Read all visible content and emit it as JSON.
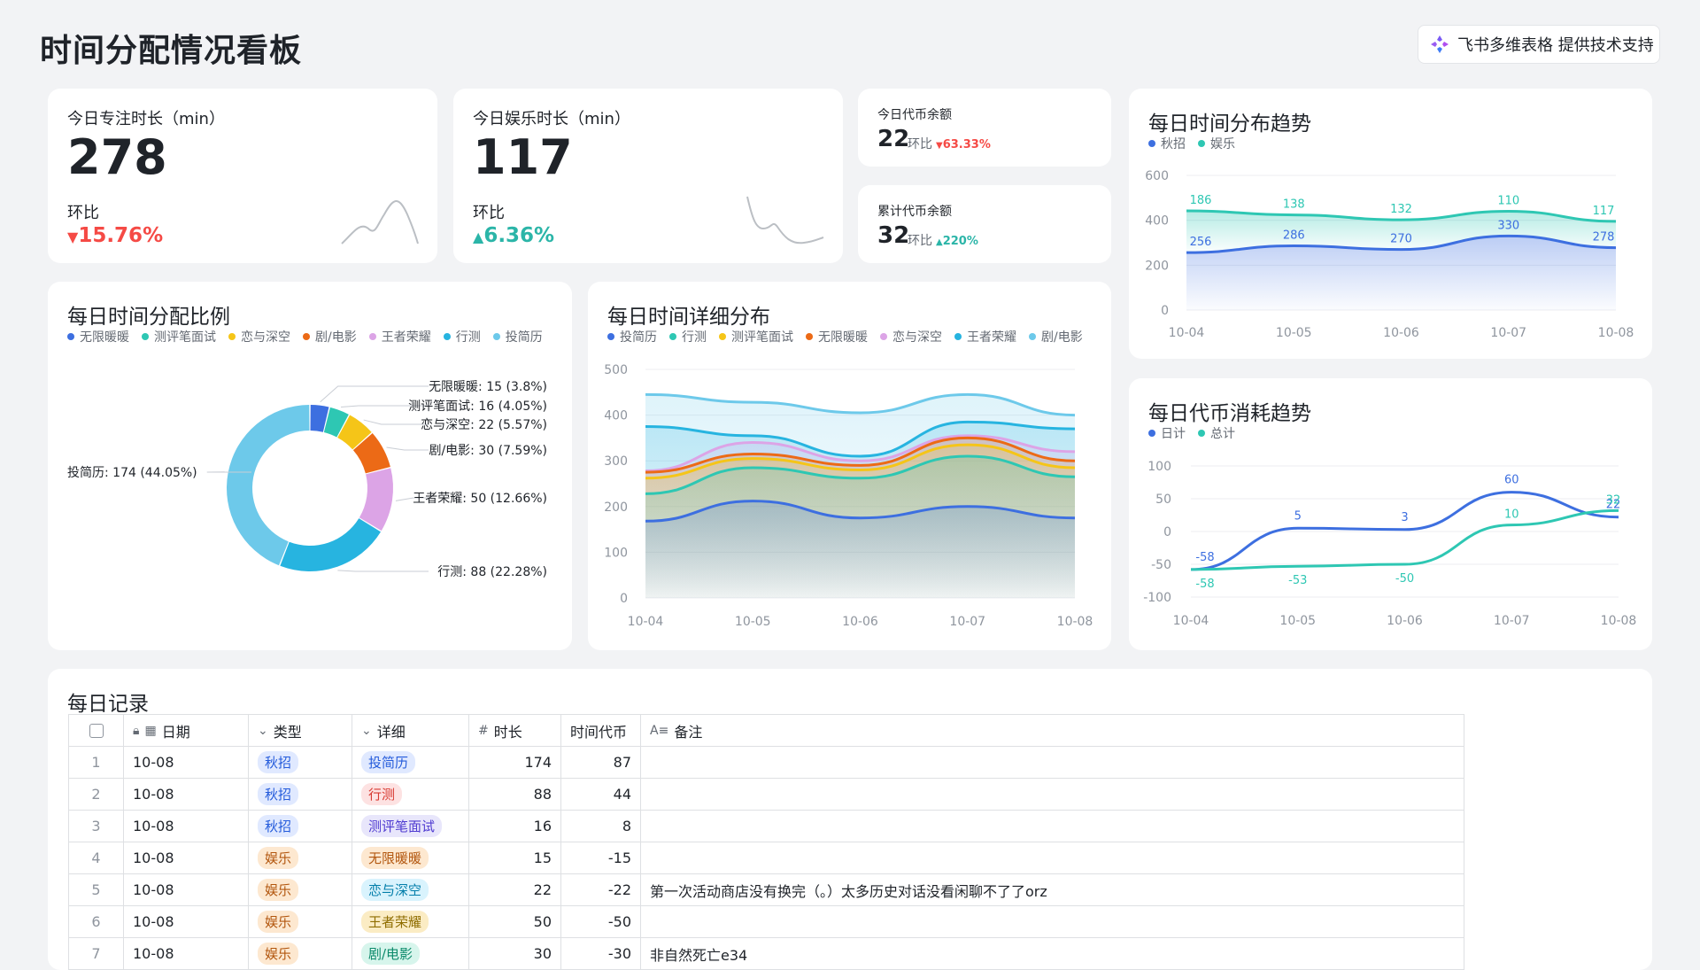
{
  "header": {
    "title": "时间分配情况看板",
    "brand": "飞书多维表格 提供技术支持"
  },
  "kpis": {
    "focus": {
      "label": "今日专注时长（min）",
      "value": "278",
      "cmp_label": "环比",
      "delta": "15.76%",
      "direction": "down"
    },
    "fun": {
      "label": "今日娱乐时长（min）",
      "value": "117",
      "cmp_label": "环比",
      "delta": "6.36%",
      "direction": "up"
    },
    "coin_today": {
      "label": "今日代币余额",
      "value": "22",
      "cmp_label": "环比",
      "delta": "63.33%",
      "direction": "down"
    },
    "coin_total": {
      "label": "累计代币余额",
      "value": "32",
      "cmp_label": "环比",
      "delta": "220%",
      "direction": "up"
    }
  },
  "colors": {
    "blue": "#3d6fe0",
    "teal": "#2ec7b3",
    "yellow": "#f5c518",
    "orange": "#ec6a16",
    "pink": "#dca4e6",
    "cyan": "#27b4e0",
    "lightblue": "#6dc9ea",
    "down": "#f54a45",
    "up": "#2bb5a8"
  },
  "chart_data": [
    {
      "id": "trend",
      "type": "area",
      "title": "每日时间分布趋势",
      "legend": [
        "秋招",
        "娱乐"
      ],
      "categories": [
        "10-04",
        "10-05",
        "10-06",
        "10-07",
        "10-08"
      ],
      "series": [
        {
          "name": "秋招",
          "values": [
            256,
            286,
            270,
            330,
            278
          ],
          "color": "#3d6fe0"
        },
        {
          "name": "娱乐",
          "values": [
            186,
            138,
            132,
            110,
            117
          ],
          "color": "#2ec7b3"
        }
      ],
      "stacked": true,
      "ylim": [
        0,
        600
      ],
      "yticks": [
        0,
        200,
        400,
        600
      ]
    },
    {
      "id": "ratio",
      "type": "pie",
      "title": "每日时间分配比例",
      "legend": [
        "无限暖暖",
        "测评笔面试",
        "恋与深空",
        "剧/电影",
        "王者荣耀",
        "行测",
        "投简历"
      ],
      "slices": [
        {
          "name": "无限暖暖",
          "value": 15,
          "pct": "3.8%",
          "color": "#3d6fe0"
        },
        {
          "name": "测评笔面试",
          "value": 16,
          "pct": "4.05%",
          "color": "#2ec7b3"
        },
        {
          "name": "恋与深空",
          "value": 22,
          "pct": "5.57%",
          "color": "#f5c518"
        },
        {
          "name": "剧/电影",
          "value": 30,
          "pct": "7.59%",
          "color": "#ec6a16"
        },
        {
          "name": "王者荣耀",
          "value": 50,
          "pct": "12.66%",
          "color": "#dca4e6"
        },
        {
          "name": "行测",
          "value": 88,
          "pct": "22.28%",
          "color": "#27b4e0"
        },
        {
          "name": "投简历",
          "value": 174,
          "pct": "44.05%",
          "color": "#6dc9ea"
        }
      ]
    },
    {
      "id": "detail",
      "type": "area",
      "title": "每日时间详细分布",
      "legend": [
        "投简历",
        "行测",
        "测评笔面试",
        "无限暖暖",
        "恋与深空",
        "王者荣耀",
        "剧/电影"
      ],
      "legend_colors": [
        "#3d6fe0",
        "#2ec7b3",
        "#f5c518",
        "#ec6a16",
        "#dca4e6",
        "#27b4e0",
        "#6dc9ea"
      ],
      "categories": [
        "10-04",
        "10-05",
        "10-06",
        "10-07",
        "10-08"
      ],
      "lines": [
        {
          "values": [
            445,
            428,
            405,
            445,
            400
          ],
          "color": "#6dc9ea"
        },
        {
          "values": [
            375,
            355,
            310,
            385,
            370
          ],
          "color": "#27b4e0"
        },
        {
          "values": [
            278,
            340,
            300,
            355,
            320
          ],
          "color": "#dca4e6"
        },
        {
          "values": [
            275,
            315,
            290,
            350,
            300
          ],
          "color": "#ec6a16"
        },
        {
          "values": [
            262,
            305,
            280,
            335,
            285
          ],
          "color": "#f5c518"
        },
        {
          "values": [
            228,
            285,
            262,
            310,
            265
          ],
          "color": "#2ec7b3"
        },
        {
          "values": [
            168,
            212,
            175,
            200,
            175
          ],
          "color": "#3d6fe0"
        }
      ],
      "ylim": [
        0,
        500
      ],
      "yticks": [
        0,
        100,
        200,
        300,
        400,
        500
      ]
    },
    {
      "id": "coins",
      "type": "line",
      "title": "每日代币消耗趋势",
      "legend": [
        "日计",
        "总计"
      ],
      "categories": [
        "10-04",
        "10-05",
        "10-06",
        "10-07",
        "10-08"
      ],
      "series": [
        {
          "name": "日计",
          "values": [
            -58,
            5,
            3,
            60,
            22
          ],
          "color": "#3d6fe0"
        },
        {
          "name": "总计",
          "values": [
            -58,
            -53,
            -50,
            10,
            32
          ],
          "color": "#2ec7b3"
        }
      ],
      "ylim": [
        -100,
        100
      ],
      "yticks": [
        -100,
        -50,
        0,
        50,
        100
      ]
    }
  ],
  "table": {
    "title": "每日记录",
    "columns": [
      "日期",
      "类型",
      "详细",
      "时长",
      "时间代币",
      "备注"
    ],
    "rows": [
      {
        "n": "1",
        "date": "10-08",
        "type": "秋招",
        "detail": "投简历",
        "duration": "174",
        "coin": "87",
        "note": ""
      },
      {
        "n": "2",
        "date": "10-08",
        "type": "秋招",
        "detail": "行测",
        "duration": "88",
        "coin": "44",
        "note": ""
      },
      {
        "n": "3",
        "date": "10-08",
        "type": "秋招",
        "detail": "测评笔面试",
        "duration": "16",
        "coin": "8",
        "note": ""
      },
      {
        "n": "4",
        "date": "10-08",
        "type": "娱乐",
        "detail": "无限暖暖",
        "duration": "15",
        "coin": "-15",
        "note": ""
      },
      {
        "n": "5",
        "date": "10-08",
        "type": "娱乐",
        "detail": "恋与深空",
        "duration": "22",
        "coin": "-22",
        "note": "第一次活动商店没有换完（。）太多历史对话没看闲聊不了了orz"
      },
      {
        "n": "6",
        "date": "10-08",
        "type": "娱乐",
        "detail": "王者荣耀",
        "duration": "50",
        "coin": "-50",
        "note": ""
      },
      {
        "n": "7",
        "date": "10-08",
        "type": "娱乐",
        "detail": "剧/电影",
        "duration": "30",
        "coin": "-30",
        "note": "非自然死亡e34"
      }
    ]
  }
}
